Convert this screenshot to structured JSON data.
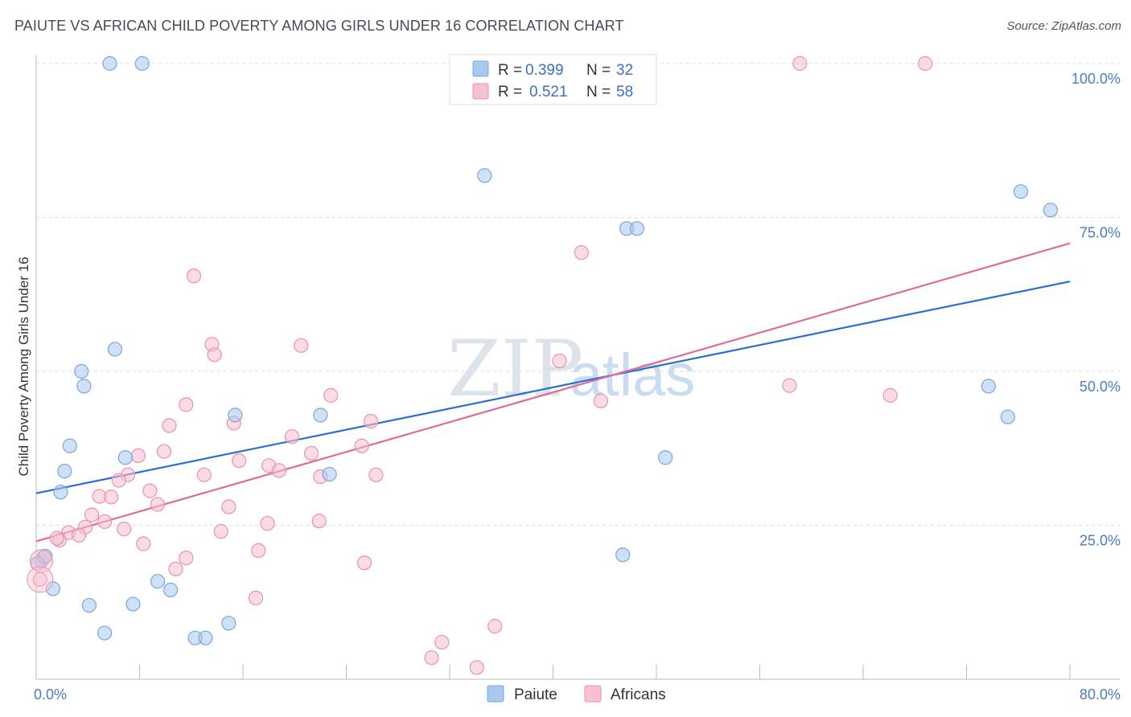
{
  "title": "PAIUTE VS AFRICAN CHILD POVERTY AMONG GIRLS UNDER 16 CORRELATION CHART",
  "source": "Source: ZipAtlas.com",
  "watermark": {
    "zip": "ZIP",
    "atlas": "atlas"
  },
  "legend": {
    "r_label": "R =",
    "n_label": "N =",
    "rows": [
      {
        "r": "0.399",
        "n": "32"
      },
      {
        "r": "0.521",
        "n": "58"
      }
    ]
  },
  "chart_data": {
    "type": "scatter",
    "xlabel": "",
    "ylabel": "Child Poverty Among Girls Under 16",
    "xlim": [
      0,
      80
    ],
    "ylim": [
      0,
      100
    ],
    "x_tick_labels": [
      {
        "value": 0,
        "label": "0.0%"
      },
      {
        "value": 80,
        "label": "80.0%"
      }
    ],
    "y_tick_labels": [
      {
        "value": 25,
        "label": "25.0%"
      },
      {
        "value": 50,
        "label": "50.0%"
      },
      {
        "value": 75,
        "label": "75.0%"
      },
      {
        "value": 100,
        "label": "100.0%"
      }
    ],
    "grid": true,
    "legend_position": "top-center",
    "series": [
      {
        "name": "Paiute",
        "color": "#a8c8f0",
        "stroke": "#7aa6de",
        "trend_color": "#2b6fcc",
        "trend": {
          "x": [
            0,
            80
          ],
          "y": [
            30.2,
            64.6
          ]
        },
        "points": [
          [
            5.7,
            100
          ],
          [
            8.2,
            100
          ],
          [
            34.7,
            81.8
          ],
          [
            76.2,
            79.2
          ],
          [
            78.5,
            76.2
          ],
          [
            45.7,
            73.2
          ],
          [
            46.5,
            73.2
          ],
          [
            6.1,
            53.6
          ],
          [
            3.5,
            50
          ],
          [
            3.7,
            47.6
          ],
          [
            73.7,
            47.6
          ],
          [
            15.4,
            42.9
          ],
          [
            22.0,
            42.9
          ],
          [
            75.2,
            42.6
          ],
          [
            2.6,
            37.9
          ],
          [
            6.9,
            36.0
          ],
          [
            48.7,
            36.0
          ],
          [
            2.2,
            33.8
          ],
          [
            22.7,
            33.3
          ],
          [
            1.9,
            30.4
          ],
          [
            0.7,
            20.0
          ],
          [
            45.4,
            20.2
          ],
          [
            0.1,
            18.8
          ],
          [
            1.3,
            14.7
          ],
          [
            9.4,
            15.9
          ],
          [
            10.4,
            14.5
          ],
          [
            4.1,
            12.0
          ],
          [
            7.5,
            12.2
          ],
          [
            14.9,
            9.1
          ],
          [
            5.3,
            7.5
          ],
          [
            12.3,
            6.7
          ],
          [
            13.1,
            6.7
          ]
        ]
      },
      {
        "name": "Africans",
        "color": "#f8c0d0",
        "stroke": "#e892ac",
        "trend_color": "#e06b96",
        "trend": {
          "x": [
            0,
            80
          ],
          "y": [
            22.4,
            70.8
          ]
        },
        "points": [
          [
            59.1,
            100
          ],
          [
            68.8,
            100
          ],
          [
            42.2,
            69.3
          ],
          [
            12.2,
            65.5
          ],
          [
            13.6,
            54.4
          ],
          [
            20.5,
            54.2
          ],
          [
            13.8,
            52.7
          ],
          [
            40.5,
            51.7
          ],
          [
            58.3,
            47.7
          ],
          [
            22.8,
            46.1
          ],
          [
            66.1,
            46.1
          ],
          [
            43.7,
            45.2
          ],
          [
            11.6,
            44.6
          ],
          [
            25.9,
            41.9
          ],
          [
            15.3,
            41.6
          ],
          [
            10.3,
            41.2
          ],
          [
            19.8,
            39.4
          ],
          [
            25.2,
            37.9
          ],
          [
            9.9,
            37.0
          ],
          [
            21.3,
            36.7
          ],
          [
            7.9,
            36.3
          ],
          [
            15.7,
            35.5
          ],
          [
            18.0,
            34.7
          ],
          [
            18.8,
            33.9
          ],
          [
            13.0,
            33.2
          ],
          [
            7.1,
            33.2
          ],
          [
            26.3,
            33.2
          ],
          [
            22.0,
            32.9
          ],
          [
            6.4,
            32.3
          ],
          [
            8.8,
            30.6
          ],
          [
            4.9,
            29.7
          ],
          [
            5.8,
            29.6
          ],
          [
            9.4,
            28.4
          ],
          [
            14.9,
            28.0
          ],
          [
            4.3,
            26.7
          ],
          [
            21.9,
            25.7
          ],
          [
            5.3,
            25.6
          ],
          [
            17.9,
            25.3
          ],
          [
            3.8,
            24.7
          ],
          [
            6.8,
            24.4
          ],
          [
            14.3,
            24.0
          ],
          [
            2.5,
            23.8
          ],
          [
            3.3,
            23.4
          ],
          [
            1.8,
            22.6
          ],
          [
            8.3,
            22.0
          ],
          [
            17.2,
            20.9
          ],
          [
            11.6,
            19.7
          ],
          [
            0.4,
            19.2
          ],
          [
            25.4,
            18.9
          ],
          [
            10.8,
            17.9
          ],
          [
            0.3,
            16.2
          ],
          [
            17.0,
            13.2
          ],
          [
            35.5,
            8.6
          ],
          [
            31.4,
            6.0
          ],
          [
            30.6,
            3.5
          ],
          [
            34.1,
            1.9
          ],
          [
            0.6,
            19.8
          ],
          [
            1.6,
            22.9
          ]
        ]
      }
    ]
  }
}
